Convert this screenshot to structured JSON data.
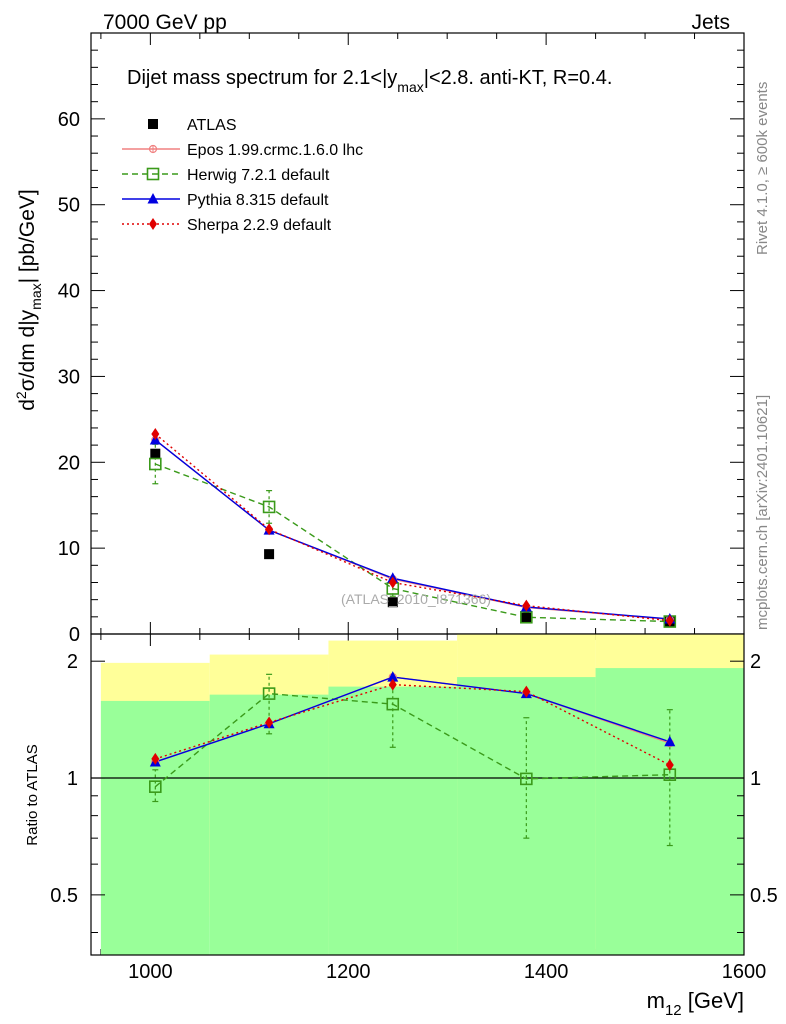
{
  "header": {
    "left": "7000 GeV pp",
    "right": "Jets"
  },
  "side_labels": {
    "rivet": "Rivet 4.1.0, ≥ 600k events",
    "mcplots": "mcplots.cern.ch [arXiv:2401.10621]"
  },
  "chart_data": {
    "type": "line",
    "title_main": "Dijet mass spectrum for 2.1<|y",
    "title_sub": "max",
    "title_tail": "|<2.8.  anti-KT, R=0.4.",
    "watermark": "(ATLAS_2010_I871366)",
    "xlabel_main": "m",
    "xlabel_sub": "12",
    "xlabel_unit": " [GeV]",
    "ylabel": {
      "pre": "d",
      "sup": "2",
      "mid": "σ/dm d|y",
      "sub": "max",
      "post": "| [pb/GeV]"
    },
    "ratio_ylabel": "Ratio to ATLAS",
    "xlim": [
      940,
      1600
    ],
    "ylim": [
      0,
      70
    ],
    "ratio_ylim": [
      0.35,
      2.35
    ],
    "x_ticks": [
      "1000",
      "1200",
      "1400",
      "1600"
    ],
    "y_ticks": [
      "0",
      "10",
      "20",
      "30",
      "40",
      "50",
      "60"
    ],
    "ratio_ticks": [
      "0.5",
      "1",
      "2"
    ],
    "bin_edges": [
      950,
      1060,
      1180,
      1310,
      1450,
      1600
    ],
    "band_green_hi": [
      1.58,
      1.64,
      1.72,
      1.82,
      1.92
    ],
    "band_green_lo": [
      0.3,
      0.3,
      0.3,
      0.3,
      0.3
    ],
    "band_yellow_hi": [
      1.98,
      2.08,
      2.26,
      2.5,
      2.5
    ],
    "band_yellow_lo": [
      0.53,
      0.44,
      0.3,
      0.3,
      0.3
    ],
    "x": [
      1005,
      1120,
      1245,
      1380,
      1525
    ],
    "data": {
      "name": "ATLAS",
      "values": [
        21.0,
        9.3,
        3.7,
        1.9,
        1.45
      ],
      "color": "#000000"
    },
    "series": [
      {
        "name": "Epos 1.99.crmc.1.6.0 lhc",
        "color": "#f08080",
        "dash": "",
        "marker": "circle-plus",
        "values": [
          22.6,
          12.1,
          6.4,
          3.1,
          1.7
        ],
        "ratio": [
          1.1,
          1.38,
          1.82,
          1.65,
          1.23
        ]
      },
      {
        "name": "Herwig 7.2.1 default",
        "color": "#3a9a1a",
        "dash": "6,4",
        "marker": "open-square",
        "values": [
          19.8,
          14.8,
          5.3,
          1.95,
          1.45
        ],
        "err": [
          2.3,
          1.9,
          0.9,
          0.5,
          0.4
        ],
        "ratio": [
          0.95,
          1.65,
          1.55,
          0.995,
          1.02
        ],
        "ratio_err_lo": [
          0.87,
          1.3,
          1.2,
          0.7,
          0.67
        ],
        "ratio_err_hi": [
          1.05,
          1.85,
          1.8,
          1.43,
          1.5
        ]
      },
      {
        "name": "Pythia 8.315 default",
        "color": "#0000e0",
        "dash": "",
        "marker": "triangle",
        "values": [
          22.6,
          12.1,
          6.5,
          3.15,
          1.75
        ],
        "ratio": [
          1.1,
          1.38,
          1.82,
          1.65,
          1.24
        ]
      },
      {
        "name": "Sherpa 2.2.9 default",
        "color": "#e00000",
        "dash": "2,3",
        "marker": "diamond",
        "values": [
          23.3,
          12.2,
          6.0,
          3.3,
          1.55
        ],
        "ratio": [
          1.12,
          1.39,
          1.74,
          1.67,
          1.08
        ]
      }
    ]
  }
}
